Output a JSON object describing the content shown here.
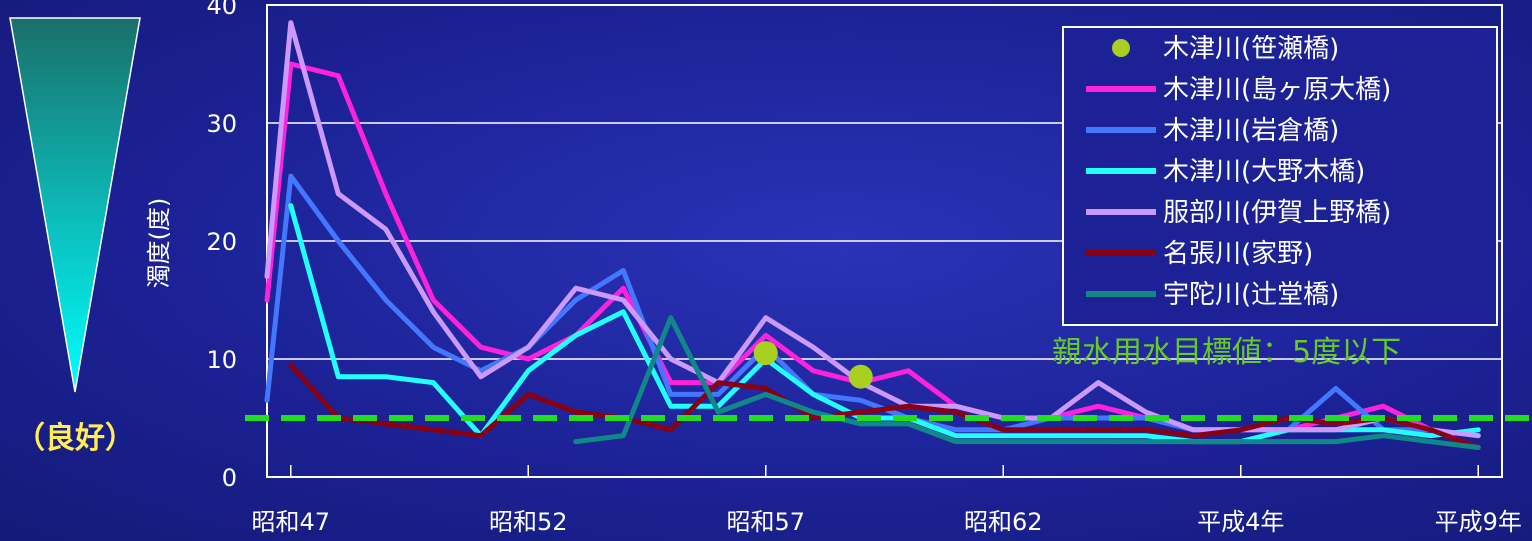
{
  "quality_indicator": {
    "label": "（良好）",
    "gradient_top": "#1a6f6a",
    "gradient_bottom": "#00ffff"
  },
  "chart_data": {
    "type": "line",
    "ylabel": "濁度(度)",
    "ylim": [
      0,
      40
    ],
    "yticks": [
      0,
      10,
      20,
      30,
      40
    ],
    "xlim": [
      0.5,
      26.5
    ],
    "x_tick_labels": [
      {
        "x": 1,
        "label": "昭和47"
      },
      {
        "x": 6,
        "label": "昭和52"
      },
      {
        "x": 11,
        "label": "昭和57"
      },
      {
        "x": 16,
        "label": "昭和62"
      },
      {
        "x": 21,
        "label": "平成4年"
      },
      {
        "x": 26,
        "label": "平成9年"
      }
    ],
    "grid": "horizontal",
    "legend_position": "top-right",
    "threshold": {
      "value": 5,
      "label": "親水用水目標値：5度以下",
      "color": "#22dd22"
    },
    "series": [
      {
        "name": "木津川(笹瀬橋)",
        "color": "#a8d020",
        "style": "markers",
        "x": [
          11,
          13
        ],
        "y": [
          10.5,
          8.5
        ]
      },
      {
        "name": "木津川(島ヶ原大橋)",
        "color": "#ff22dd",
        "style": "line",
        "x": [
          0.5,
          1,
          2,
          3,
          4,
          5,
          6,
          7,
          8,
          9,
          10,
          11,
          12,
          13,
          14,
          15,
          16,
          17,
          18,
          19,
          20,
          21,
          22,
          23,
          24,
          25,
          26
        ],
        "y": [
          15,
          35,
          34,
          24,
          15,
          11,
          10,
          12,
          16,
          8,
          8,
          12,
          9,
          8,
          9,
          6,
          5,
          5,
          6,
          5,
          4,
          4,
          4,
          5,
          6,
          4,
          2.5
        ]
      },
      {
        "name": "木津川(岩倉橋)",
        "color": "#4477ff",
        "style": "line",
        "x": [
          0.5,
          1,
          2,
          3,
          4,
          5,
          6,
          7,
          8,
          9,
          10,
          11,
          12,
          13,
          14,
          15,
          16,
          17,
          18,
          19,
          20,
          21,
          22,
          23,
          24,
          25,
          26
        ],
        "y": [
          6.5,
          25.5,
          20,
          15,
          11,
          9,
          11,
          15,
          17.5,
          7,
          7,
          11,
          7,
          6.5,
          5,
          4,
          4,
          5,
          5,
          5,
          4,
          4,
          4,
          7.5,
          4,
          4,
          3.5
        ]
      },
      {
        "name": "木津川(大野木橋)",
        "color": "#22ffff",
        "style": "line",
        "x": [
          1,
          2,
          3,
          4,
          5,
          6,
          7,
          8,
          9,
          10,
          11,
          12,
          13,
          14,
          15,
          16,
          17,
          18,
          19,
          20,
          21,
          22,
          23,
          24,
          25,
          26
        ],
        "y": [
          23,
          8.5,
          8.5,
          8,
          3.5,
          9,
          12,
          14,
          6,
          6,
          10,
          7,
          5,
          5,
          3.5,
          3.5,
          3.5,
          3.5,
          3.5,
          3,
          3,
          4,
          4,
          4,
          3.5,
          4
        ]
      },
      {
        "name": "服部川(伊賀上野橋)",
        "color": "#cc99ff",
        "style": "line",
        "x": [
          0.5,
          1,
          2,
          3,
          4,
          5,
          6,
          7,
          8,
          9,
          10,
          11,
          12,
          13,
          14,
          15,
          16,
          17,
          18,
          19,
          20,
          21,
          22,
          23,
          24,
          25,
          26
        ],
        "y": [
          17,
          38.5,
          24,
          21,
          14,
          8.5,
          11,
          16,
          15,
          10,
          8,
          13.5,
          11,
          8,
          6,
          6,
          5,
          5,
          8,
          5.5,
          4,
          4,
          4,
          4,
          5,
          4,
          3.5
        ]
      },
      {
        "name": "名張川(家野)",
        "color": "#880011",
        "style": "line",
        "x": [
          1,
          2,
          5,
          6,
          7,
          8,
          9,
          10,
          11,
          12,
          13,
          14,
          15,
          16,
          17,
          18,
          19,
          20,
          21,
          22,
          23,
          24,
          25,
          26
        ],
        "y": [
          9.5,
          5,
          3.5,
          7,
          5.5,
          5,
          4,
          8,
          7.5,
          5,
          5.5,
          6,
          5.5,
          4,
          4,
          4,
          4,
          3.5,
          4,
          5,
          4.5,
          5,
          4,
          2.5
        ]
      },
      {
        "name": "宇陀川(辻堂橋)",
        "color": "#118888",
        "style": "line",
        "x": [
          7,
          8,
          9,
          10,
          11,
          12,
          13,
          14,
          15,
          16,
          17,
          18,
          19,
          20,
          21,
          22,
          23,
          24,
          25,
          26
        ],
        "y": [
          3,
          3.5,
          13.5,
          5.5,
          7,
          5.5,
          4.5,
          4.5,
          3,
          3,
          3,
          3,
          3,
          3,
          3,
          3,
          3,
          3.5,
          3,
          2.5
        ]
      }
    ]
  }
}
